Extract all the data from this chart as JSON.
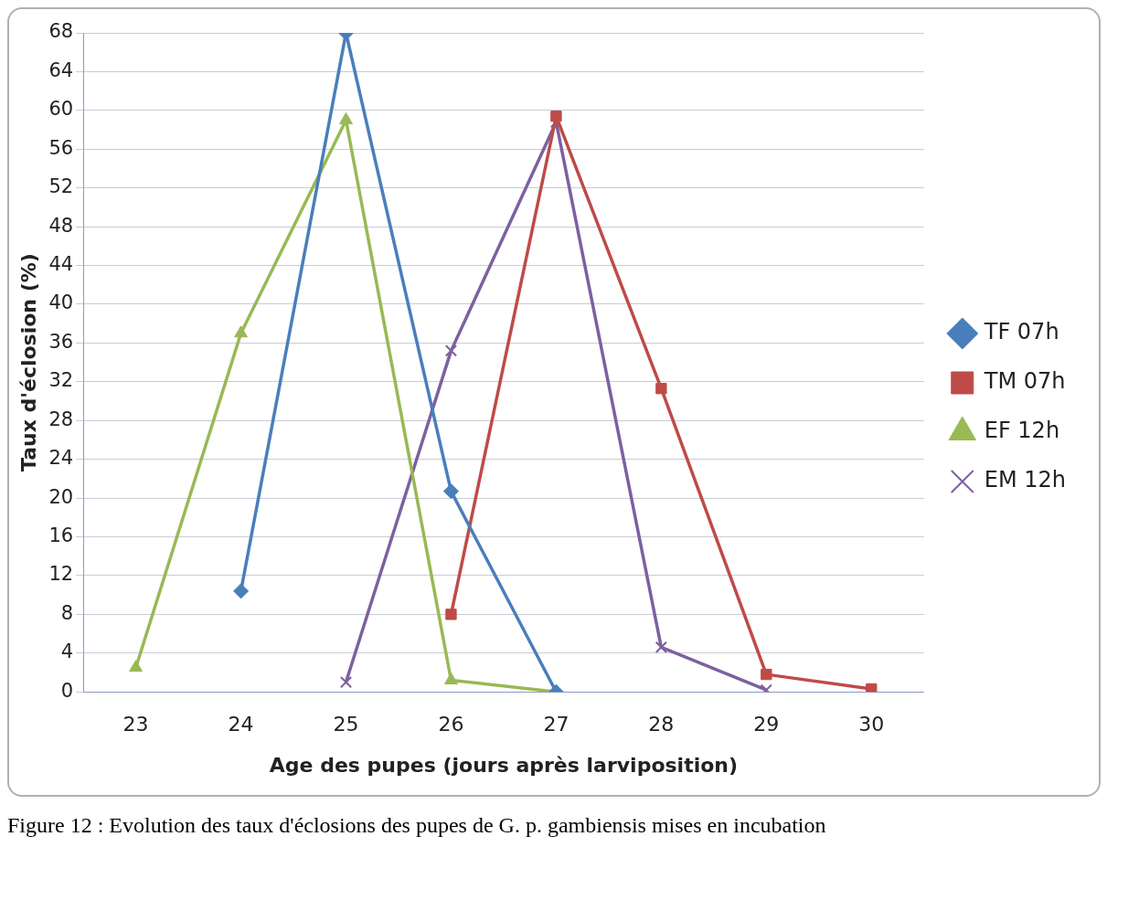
{
  "chart_data": {
    "type": "line",
    "xlabel": "Age des pupes (jours après larviposition)",
    "ylabel": "Taux d'éclosion (%)",
    "categories": [
      "23",
      "24",
      "25",
      "26",
      "27",
      "28",
      "29",
      "30"
    ],
    "ylim": [
      0,
      68
    ],
    "yticks": [
      0,
      4,
      8,
      12,
      16,
      20,
      24,
      28,
      32,
      36,
      40,
      44,
      48,
      52,
      56,
      60,
      64,
      68
    ],
    "grid": "y",
    "legend": "right",
    "line_style": "solid",
    "series": [
      {
        "name": "TF 07h",
        "color": "#4a7ebb",
        "marker": "diamond",
        "values": [
          null,
          10.4,
          68,
          20.7,
          0,
          null,
          null,
          null
        ]
      },
      {
        "name": "TM 07h",
        "color": "#be4b48",
        "marker": "square",
        "values": [
          null,
          null,
          null,
          8,
          59.4,
          31.3,
          1.8,
          0.3
        ]
      },
      {
        "name": "EF 12h",
        "color": "#98b954",
        "marker": "triangle",
        "values": [
          2.5,
          37,
          59,
          1.2,
          0,
          null,
          null,
          null
        ]
      },
      {
        "name": "EM 12h",
        "color": "#7d60a0",
        "marker": "cross",
        "values": [
          null,
          null,
          1,
          35.2,
          58.8,
          4.6,
          0.2,
          null
        ]
      }
    ],
    "annotations": [
      "Figure 12 : Evolution des taux d'éclosions des pupes de G. p. gambiensis mises en incubation"
    ]
  }
}
